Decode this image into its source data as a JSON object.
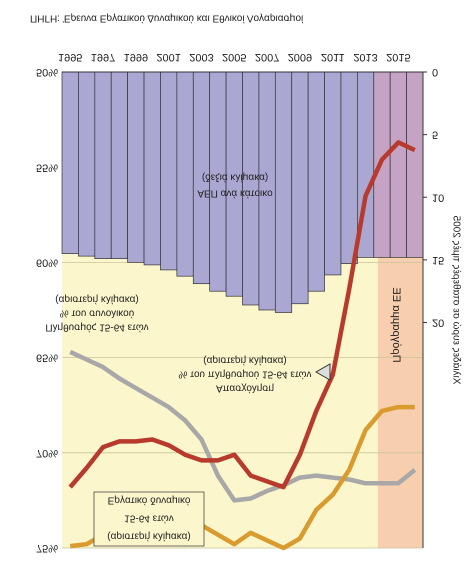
{
  "chart_data": {
    "type": "bar_line",
    "source": "ΠΗΓΗ: Έρευνα Εργατικού Δυναμικού και Εθνικοί Λογαριασμοί",
    "y2label": "Χιλιάδες ευρώ σε σταθερές τιμές 2005",
    "x": [
      1995,
      1996,
      1997,
      1998,
      1999,
      2000,
      2001,
      2002,
      2003,
      2004,
      2005,
      2006,
      2007,
      2008,
      2009,
      2010,
      2011,
      2012,
      2013,
      2014,
      2015,
      2016
    ],
    "xlim": [
      1994.5,
      2016.5
    ],
    "xticks": [
      1995,
      1997,
      1999,
      2001,
      2003,
      2005,
      2007,
      2009,
      2011,
      2013,
      2015
    ],
    "ylim": [
      50,
      75
    ],
    "yticks": [
      {
        "value": 50,
        "label": "50%"
      },
      {
        "value": 55,
        "label": "55%"
      },
      {
        "value": 60,
        "label": "60%"
      },
      {
        "value": 65,
        "label": "65%"
      },
      {
        "value": 70,
        "label": "70%"
      },
      {
        "value": 75,
        "label": "75%"
      }
    ],
    "y2lim": [
      0,
      38
    ],
    "y2ticks": [
      0,
      5,
      10,
      15,
      20
    ],
    "background": "#fbf6cc",
    "program": {
      "label": "Πρόγραμμα ΕΕ",
      "span": [
        2013.75,
        2016.5
      ],
      "color": "#f7cfae",
      "bar_color": "#c5a3c4"
    },
    "series": [
      {
        "name": "ΑΕΠ ανά κάτοικο",
        "note": "(δεξιά κλίμακα)",
        "type": "bar",
        "axis": "y2",
        "color": "#aaa7d3",
        "values": [
          14.5,
          14.7,
          14.9,
          14.9,
          15.2,
          15.4,
          15.8,
          16.3,
          16.9,
          17.5,
          17.9,
          18.6,
          19.0,
          19.2,
          18.5,
          17.5,
          16.2,
          15.3,
          14.8,
          14.8,
          14.8,
          14.8
        ]
      },
      {
        "name": "Πληθυσμός 15-64 ετών",
        "note": [
          "% του συνολικού",
          "(αριστερή κλίμακα)"
        ],
        "type": "line",
        "color": "#a8a8a8",
        "values": [
          64.7,
          65.1,
          65.5,
          66.1,
          66.6,
          67.1,
          67.6,
          68.3,
          69.3,
          71.2,
          72.5,
          72.4,
          72.0,
          71.7,
          71.3,
          71.2,
          71.3,
          71.4,
          71.6,
          71.6,
          71.6,
          70.9
        ]
      },
      {
        "name": "Απασχόληση",
        "note": [
          "% του πληθυσμού 15-64 ετών",
          "(αριστερή κλίμακα)"
        ],
        "type": "line",
        "color": "#b83a2c",
        "values": [
          71.8,
          70.8,
          69.7,
          69.4,
          69.4,
          69.3,
          69.6,
          70.1,
          70.4,
          70.4,
          70.1,
          71.2,
          71.5,
          71.8,
          70.1,
          67.8,
          65.9,
          61.4,
          56.5,
          54.6,
          53.7,
          54.1
        ]
      },
      {
        "name": "Εργατικό δυναμικό",
        "note": [
          "15-64 ετών",
          "(αριστερή κλίμακα)"
        ],
        "type": "line",
        "color": "#d99b2f",
        "values": [
          74.9,
          74.8,
          74.3,
          73.9,
          73.6,
          74.1,
          74.6,
          74.8,
          73.8,
          74.3,
          74.8,
          74.2,
          74.6,
          75.0,
          74.5,
          73.0,
          72.2,
          70.9,
          68.8,
          67.8,
          67.6,
          67.6
        ]
      }
    ]
  }
}
